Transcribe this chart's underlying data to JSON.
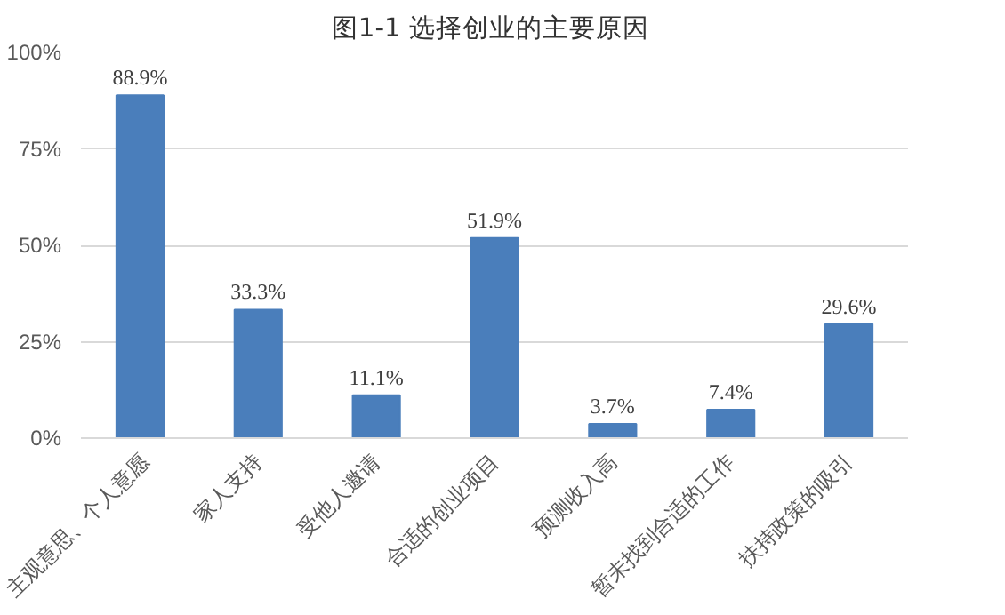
{
  "chart_data": {
    "type": "bar",
    "title": "图1-1  选择创业的主要原因",
    "categories": [
      "主观意思、个人意愿",
      "家人支持",
      "受他人邀请",
      "合适的创业项目",
      "预测收入高",
      "暂未找到合适的工作",
      "扶持政策的吸引"
    ],
    "values": [
      88.9,
      33.3,
      11.1,
      51.9,
      3.7,
      7.4,
      29.6
    ],
    "value_labels": [
      "88.9%",
      "33.3%",
      "11.1%",
      "51.9%",
      "3.7%",
      "7.4%",
      "29.6%"
    ],
    "color": "#4a7ebb",
    "ylim": [
      0,
      100
    ],
    "yticks": [
      {
        "value": 0,
        "label": "0%"
      },
      {
        "value": 25,
        "label": "25%"
      },
      {
        "value": 50,
        "label": "50%"
      },
      {
        "value": 75,
        "label": "75%"
      },
      {
        "value": 100,
        "label": "100%"
      }
    ],
    "grid": "y"
  }
}
